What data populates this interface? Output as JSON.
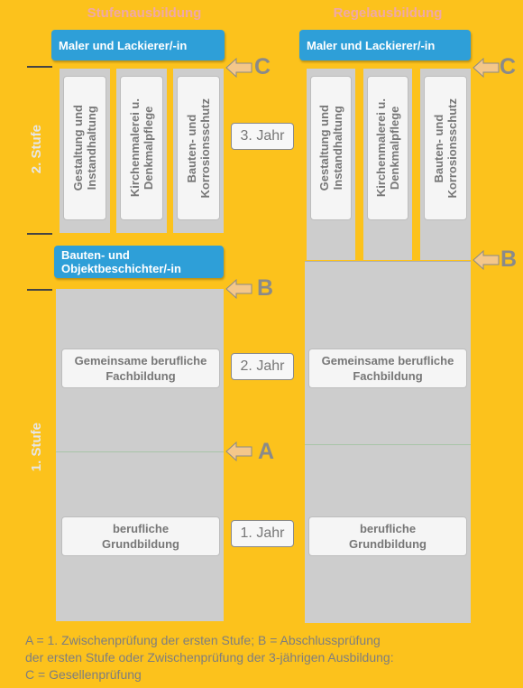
{
  "headings": {
    "left": "Stufenausbildung",
    "right": "Regelausbildung"
  },
  "left": {
    "maler": "Maler und Lackierer/-in",
    "bauten_line1": "Bauten- und",
    "bauten_line2": "Objektbeschichter/-in",
    "specializations": [
      {
        "line1": "Gestaltung und",
        "line2": "Instandhaltung"
      },
      {
        "line1": "Kirchenmalerei u.",
        "line2": "Denkmalpflege"
      },
      {
        "line1": "Bauten- und",
        "line2": "Korrosionsschutz"
      }
    ],
    "gemeinsam_line1": "Gemeinsame berufliche",
    "gemeinsam_line2": "Fachbildung",
    "grund_line1": "berufliche",
    "grund_line2": "Grundbildung"
  },
  "right": {
    "maler": "Maler und Lackierer/-in",
    "specializations": [
      {
        "line1": "Gestaltung und",
        "line2": "Instandhaltung"
      },
      {
        "line1": "Kirchenmalerei u.",
        "line2": "Denkmalpflege"
      },
      {
        "line1": "Bauten- und",
        "line2": "Korrosionsschutz"
      }
    ],
    "gemeinsam_line1": "Gemeinsame berufliche",
    "gemeinsam_line2": "Fachbildung",
    "grund_line1": "berufliche",
    "grund_line2": "Grundbildung"
  },
  "years": {
    "third": "3. Jahr",
    "second": "2. Jahr",
    "first": "1. Jahr"
  },
  "stages": {
    "second": "2. Stufe",
    "first": "1. Stufe"
  },
  "markers": {
    "c": "C",
    "b": "B",
    "a": "A"
  },
  "legend": {
    "line1": "A = 1. Zwischenprüfung der ersten Stufe; B = Abschlussprüfung",
    "line2": "der ersten Stufe oder Zwischenprüfung der 3-jährigen Ausbildung:",
    "line3": "C = Gesellenprüfung"
  },
  "colors": {
    "background": "#fcc21c",
    "blue_box": "#2e9fd8",
    "gray_block": "#cdcdcd",
    "arrow": "#f4c78a"
  }
}
